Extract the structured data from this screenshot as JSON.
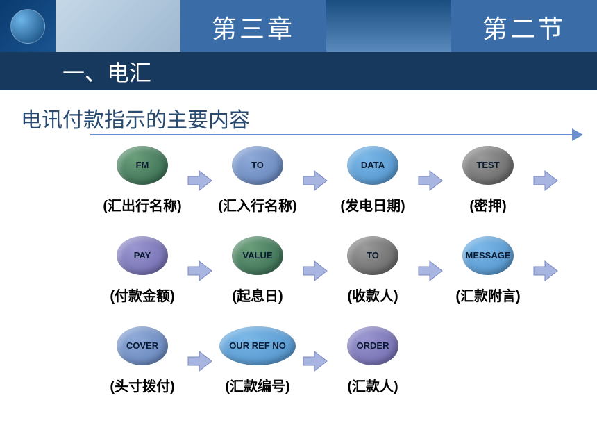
{
  "header": {
    "chapter": "第三章",
    "section": "第二节"
  },
  "title": "一、电汇",
  "subtitle": "电讯付款指示的主要内容",
  "rows": [
    [
      {
        "label": "FM",
        "caption": "(汇出行名称)",
        "color": "green"
      },
      {
        "label": "TO",
        "caption": "(汇入行名称)",
        "color": "lblue"
      },
      {
        "label": "DATA",
        "caption": "(发电日期)",
        "color": "blue"
      },
      {
        "label": "TEST",
        "caption": "(密押)",
        "color": "gray"
      }
    ],
    [
      {
        "label": "PAY",
        "caption": "(付款金额)",
        "color": "purple"
      },
      {
        "label": "VALUE",
        "caption": "(起息日)",
        "color": "green"
      },
      {
        "label": "TO",
        "caption": "(收款人)",
        "color": "gray"
      },
      {
        "label": "MESSAGE",
        "caption": "(汇款附言)",
        "color": "blue"
      }
    ],
    [
      {
        "label": "COVER",
        "caption": "(头寸拨付)",
        "color": "lblue"
      },
      {
        "label": "OUR REF NO",
        "caption": "(汇款编号)",
        "color": "blue",
        "wide": true
      },
      {
        "label": "ORDER",
        "caption": "(汇款人)",
        "color": "purple"
      }
    ]
  ],
  "colors": {
    "arrow": "#a8b5e0",
    "arrow_border": "#7a88c0"
  }
}
